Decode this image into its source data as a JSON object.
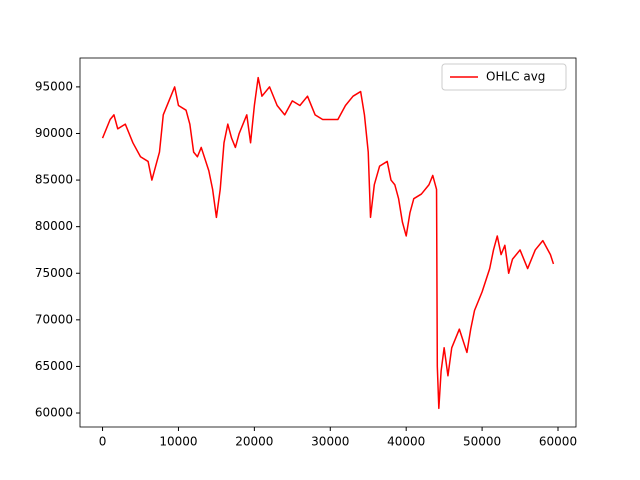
{
  "chart_data": {
    "type": "line",
    "x": [
      0,
      1000,
      1500,
      2000,
      3000,
      4000,
      5000,
      6000,
      6500,
      7000,
      7500,
      8000,
      9000,
      9500,
      10000,
      11000,
      11500,
      12000,
      12500,
      13000,
      14000,
      14500,
      15000,
      15500,
      16000,
      16500,
      17000,
      17500,
      18000,
      19000,
      19500,
      20000,
      20500,
      21000,
      22000,
      23000,
      24000,
      25000,
      26000,
      27000,
      28000,
      29000,
      30000,
      31000,
      32000,
      33000,
      34000,
      34500,
      35000,
      35300,
      35800,
      36500,
      37500,
      38000,
      38500,
      39000,
      39500,
      40000,
      40500,
      41000,
      42000,
      43000,
      43500,
      44000,
      44100,
      44300,
      44600,
      45000,
      45500,
      46000,
      47000,
      48000,
      48500,
      49000,
      50000,
      51000,
      51500,
      52000,
      52500,
      53000,
      53500,
      54000,
      55000,
      56000,
      57000,
      58000,
      59000,
      59400
    ],
    "series": [
      {
        "name": "OHLC avg",
        "color": "#ff0000",
        "values": [
          89500,
          91500,
          92000,
          90500,
          91000,
          89000,
          87500,
          87000,
          85000,
          86500,
          88000,
          92000,
          94000,
          95000,
          93000,
          92500,
          91000,
          88000,
          87500,
          88500,
          86000,
          84000,
          81000,
          84000,
          89000,
          91000,
          89500,
          88500,
          90000,
          92000,
          89000,
          93000,
          96000,
          94000,
          95000,
          93000,
          92000,
          93500,
          93000,
          94000,
          92000,
          91500,
          91500,
          91500,
          93000,
          94000,
          94500,
          92000,
          88000,
          81000,
          84500,
          86500,
          87000,
          85000,
          84500,
          83000,
          80500,
          79000,
          81500,
          83000,
          83500,
          84500,
          85500,
          84000,
          65000,
          60500,
          64500,
          67000,
          64000,
          67000,
          69000,
          66500,
          69000,
          71000,
          73000,
          75500,
          77500,
          79000,
          77000,
          78000,
          75000,
          76500,
          77500,
          75500,
          77500,
          78500,
          77000,
          76000
        ]
      }
    ],
    "xlim": [
      -2970,
      62370
    ],
    "ylim": [
      58500,
      98100
    ],
    "xticks": [
      0,
      10000,
      20000,
      30000,
      40000,
      50000,
      60000
    ],
    "yticks": [
      60000,
      65000,
      70000,
      75000,
      80000,
      85000,
      90000,
      95000
    ],
    "legend": "upper right",
    "grid": false
  }
}
